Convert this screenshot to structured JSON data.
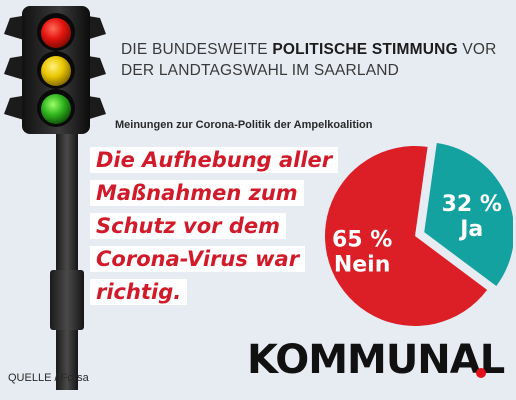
{
  "headline": {
    "prefix": "DIE BUNDESWEITE ",
    "bold": "POLITISCHE STIMMUNG",
    "suffix": " VOR DER LANDTAGSWAHL IM SAARLAND"
  },
  "statement_lines": [
    "Die Aufhebung aller",
    "Maßnahmen zum",
    "Schutz vor dem",
    "Corona-Virus war",
    "richtig."
  ],
  "source": "QUELLE / Forsa",
  "logo": "KOMMUNAL",
  "colors": {
    "background": "#e7ebf2",
    "nein": "#dc1f26",
    "ja": "#13a2a0",
    "accent_red": "#d11a2a"
  },
  "chart_data": {
    "type": "pie",
    "title": "Meinungen zur Corona-Politik der Ampelkoalition",
    "slices": [
      {
        "label": "Ja",
        "value": 32,
        "value_text": "32 %",
        "color": "#13a2a0",
        "exploded": true
      },
      {
        "label": "Nein",
        "value": 65,
        "value_text": "65 %",
        "color": "#dc1f26",
        "exploded": false
      }
    ]
  }
}
